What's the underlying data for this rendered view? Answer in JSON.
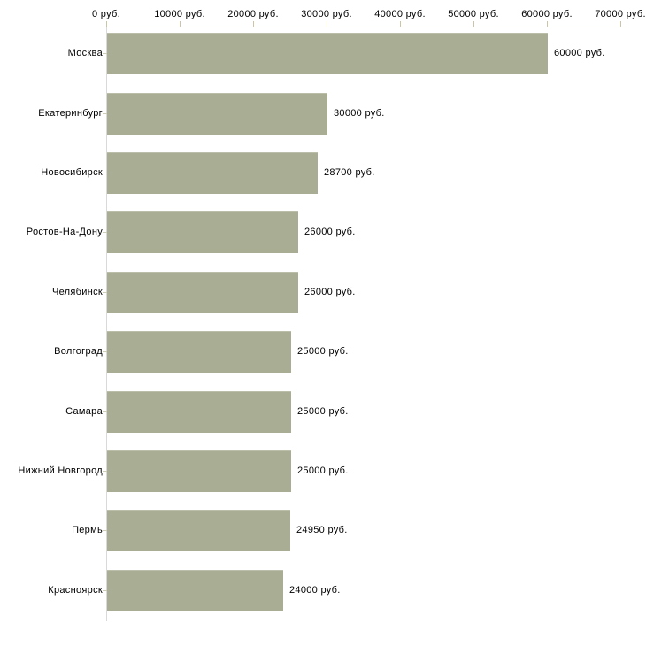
{
  "chart_data": {
    "type": "bar",
    "orientation": "horizontal",
    "categories": [
      "Москва",
      "Екатеринбург",
      "Новосибирск",
      "Ростов-На-Дону",
      "Челябинск",
      "Волгоград",
      "Самара",
      "Нижний Новгород",
      "Пермь",
      "Красноярск"
    ],
    "values": [
      60000,
      30000,
      28700,
      26000,
      26000,
      25000,
      25000,
      25000,
      24950,
      24000
    ],
    "value_labels": [
      "60000 руб.",
      "30000 руб.",
      "28700 руб.",
      "26000 руб.",
      "26000 руб.",
      "25000 руб.",
      "25000 руб.",
      "25000 руб.",
      "24950 руб.",
      "24000 руб."
    ],
    "x_ticks": [
      0,
      10000,
      20000,
      30000,
      40000,
      50000,
      60000,
      70000
    ],
    "x_tick_labels": [
      "0 руб.",
      "10000 руб.",
      "20000 руб.",
      "30000 руб.",
      "40000 руб.",
      "50000 руб.",
      "60000 руб.",
      "70000 руб."
    ],
    "xlim": [
      0,
      70000
    ],
    "unit": "руб.",
    "title": "",
    "xlabel": "",
    "ylabel": "",
    "grid": false,
    "legend": false,
    "bar_color": "#a8ad93",
    "tick_color": "#c9c5a5",
    "axis_color_h": "#deddd0",
    "axis_color_v": "#d9d9d9",
    "text_color": "#000000",
    "background": "#ffffff"
  }
}
